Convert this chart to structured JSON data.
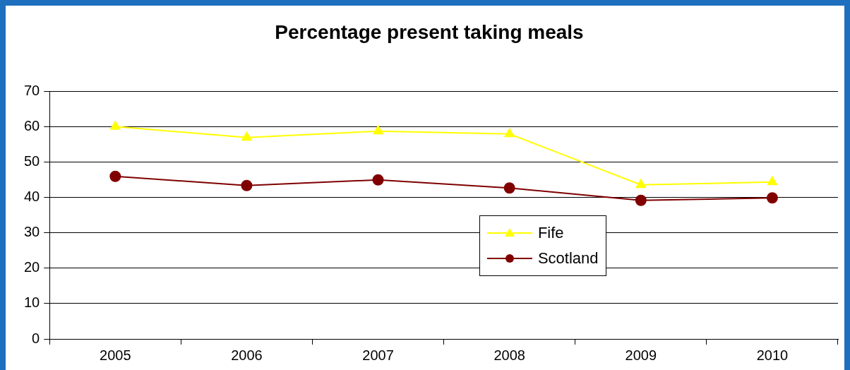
{
  "chart_data": {
    "type": "line",
    "title": "Percentage present taking meals",
    "categories": [
      "2005",
      "2006",
      "2007",
      "2008",
      "2009",
      "2010"
    ],
    "series": [
      {
        "name": "Fife",
        "color": "#ffff00",
        "marker": "triangle",
        "values": [
          60.1,
          57.0,
          58.8,
          58.0,
          43.6,
          44.4
        ]
      },
      {
        "name": "Scotland",
        "color": "#800000",
        "marker": "circle",
        "values": [
          46.0,
          43.4,
          45.0,
          42.7,
          39.2,
          39.9
        ]
      }
    ],
    "ylim": [
      0,
      70
    ],
    "yticks": [
      0,
      10,
      20,
      30,
      40,
      50,
      60,
      70
    ],
    "grid": "y",
    "legend": "right",
    "line_style": "solid"
  }
}
